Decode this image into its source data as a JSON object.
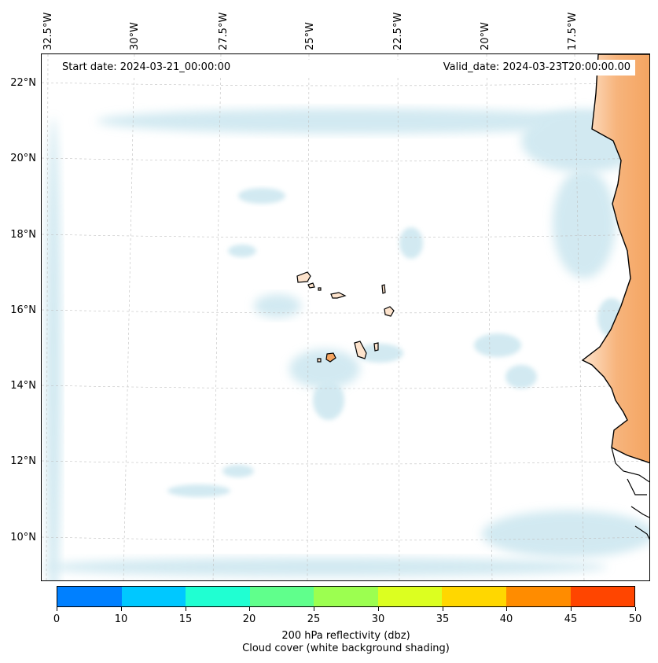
{
  "map": {
    "info": {
      "start_date": "Start date: 2024-03-21_00:00:00",
      "valid_date": "Valid_date: 2024-03-23T20:00:00.00"
    },
    "lon_labels": [
      "32.5°W",
      "30°W",
      "27.5°W",
      "25°W",
      "22.5°W",
      "20°W",
      "17.5°W"
    ],
    "lat_labels": [
      "22°N",
      "20°N",
      "18°N",
      "16°N",
      "14°N",
      "12°N",
      "10°N"
    ],
    "colors": {
      "land": "#f4a460",
      "cloud": "#add8e6",
      "coast": "#000000",
      "grid": "#bfbfbf"
    }
  },
  "colorbar": {
    "ticks": [
      "0",
      "10",
      "15",
      "20",
      "25",
      "30",
      "35",
      "40",
      "45",
      "50"
    ],
    "colors": [
      "#0080ff",
      "#00c8ff",
      "#20ffd2",
      "#60ff8c",
      "#9cff50",
      "#dcff20",
      "#ffd700",
      "#ff8c00",
      "#ff4500"
    ],
    "caption_line1": "200 hPa reflectivity (dbz)",
    "caption_line2": "Cloud cover (white background shading)"
  }
}
